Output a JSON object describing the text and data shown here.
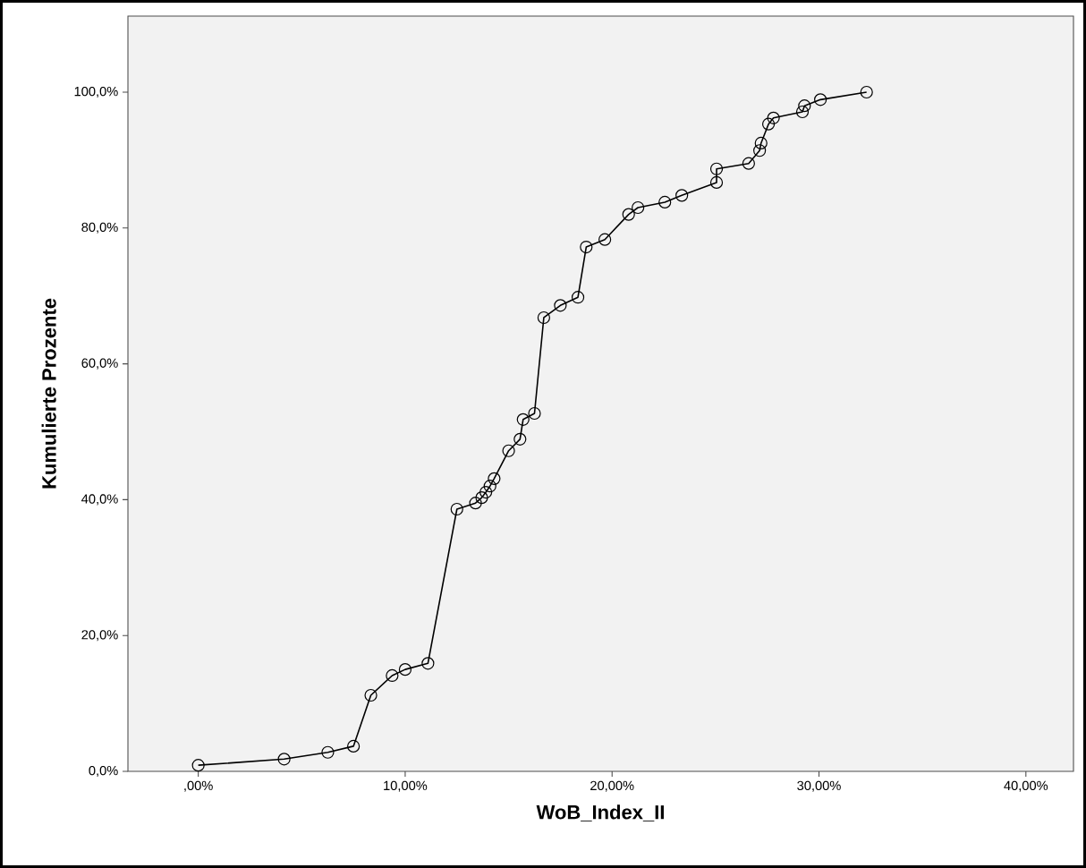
{
  "chart_data": {
    "type": "line",
    "xlabel": "WoB_Index_II",
    "ylabel": "Kumulierte Prozente",
    "xlim": [
      -3.4,
      42.3
    ],
    "ylim": [
      0,
      111.2
    ],
    "xticks": [
      {
        "value": 0,
        "label": ",00%"
      },
      {
        "value": 10,
        "label": "10,00%"
      },
      {
        "value": 20,
        "label": "20,00%"
      },
      {
        "value": 30,
        "label": "30,00%"
      },
      {
        "value": 40,
        "label": "40,00%"
      }
    ],
    "yticks": [
      {
        "value": 0,
        "label": "0,0%"
      },
      {
        "value": 20,
        "label": "20,0%"
      },
      {
        "value": 40,
        "label": "40,0%"
      },
      {
        "value": 60,
        "label": "60,0%"
      },
      {
        "value": 80,
        "label": "80,0%"
      },
      {
        "value": 100,
        "label": "100,0%"
      }
    ],
    "grid": false,
    "marker": "circle",
    "line_style": "solid",
    "series": [
      {
        "color": "#000000",
        "x": [
          0,
          4.15,
          6.26,
          7.5,
          8.34,
          9.37,
          10.0,
          11.1,
          12.5,
          13.4,
          13.7,
          13.9,
          14.1,
          14.3,
          15.0,
          15.55,
          15.7,
          16.25,
          16.7,
          17.5,
          18.35,
          18.75,
          19.65,
          20.8,
          21.25,
          22.55,
          23.37,
          25.05,
          25.05,
          26.6,
          27.13,
          27.2,
          27.56,
          27.8,
          29.2,
          29.3,
          30.07,
          32.3
        ],
        "values": [
          0.9,
          1.8,
          2.8,
          3.7,
          11.2,
          14.1,
          15.0,
          15.9,
          38.6,
          39.5,
          40.3,
          41.1,
          42.0,
          43.1,
          47.2,
          48.9,
          51.8,
          52.7,
          66.8,
          68.6,
          69.8,
          77.2,
          78.3,
          82.0,
          83.0,
          83.8,
          84.8,
          86.7,
          88.7,
          89.5,
          91.4,
          92.5,
          95.3,
          96.2,
          97.1,
          98.0,
          98.9,
          100.0
        ]
      }
    ]
  }
}
